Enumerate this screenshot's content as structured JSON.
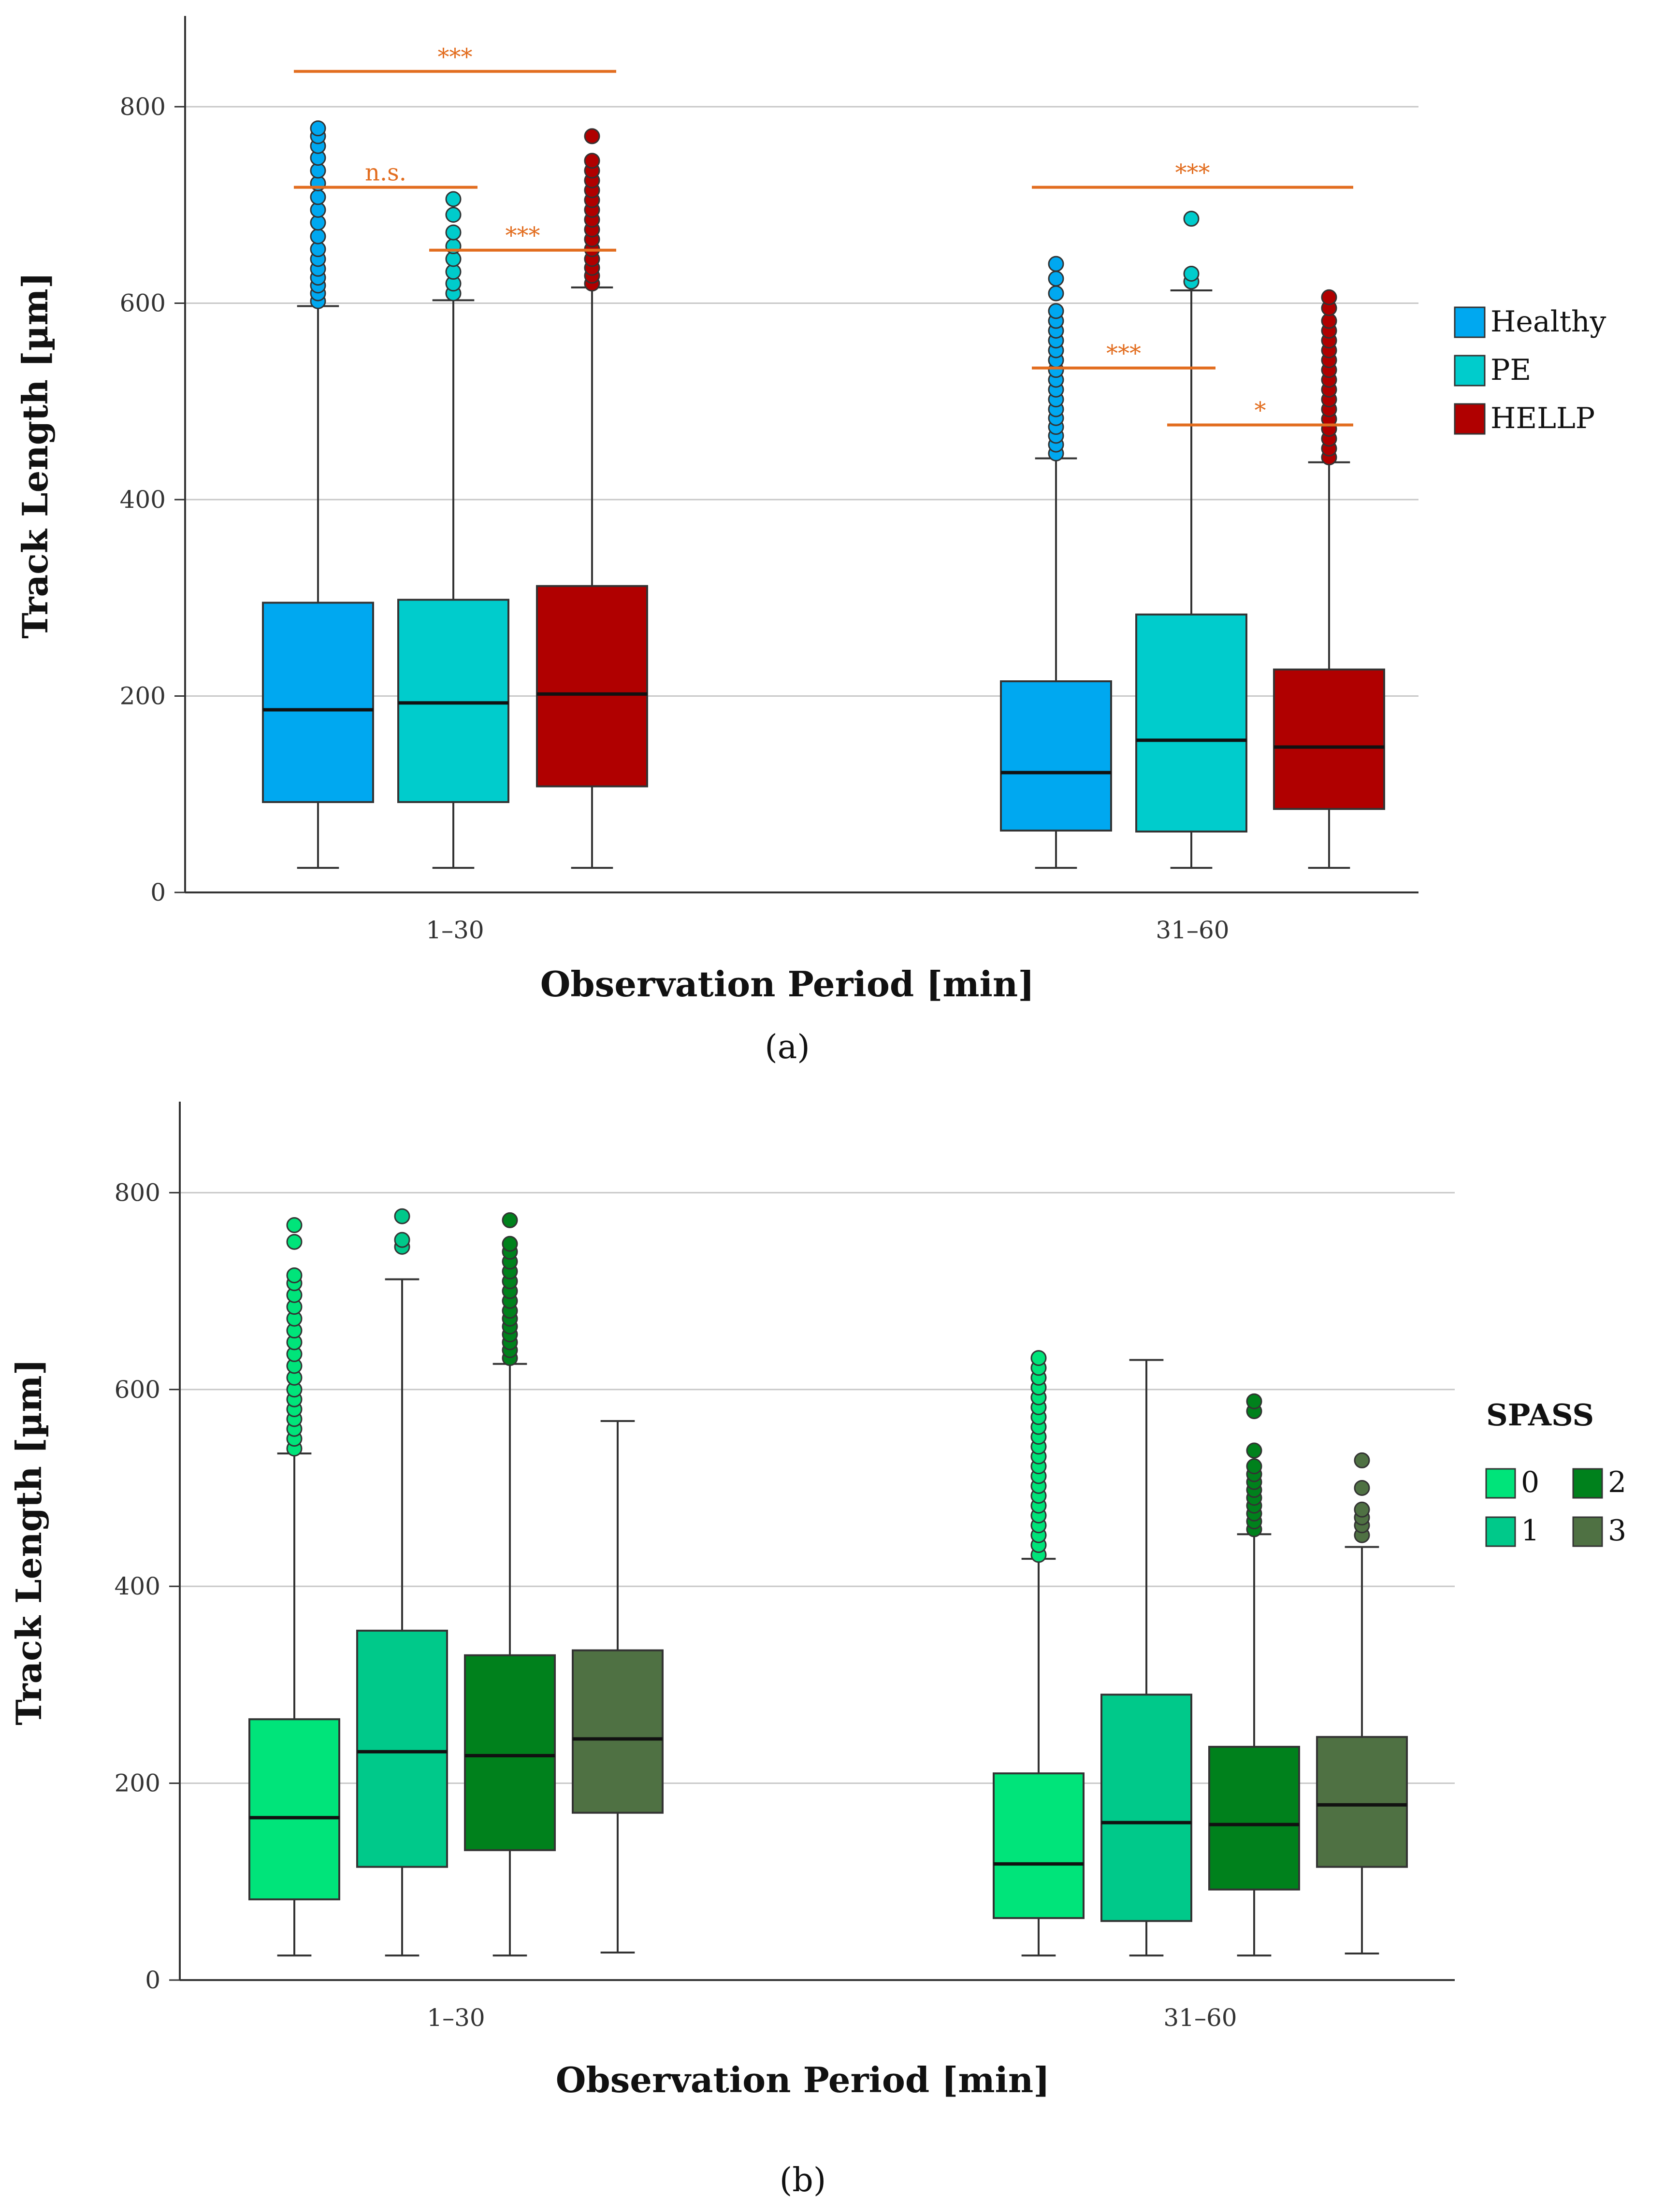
{
  "figure": {
    "panel_a_label": "(a)",
    "panel_b_label": "(b)"
  },
  "chart_data": [
    {
      "type": "boxplot",
      "panel": "a",
      "title": "",
      "xlabel": "Observation Period [min]",
      "ylabel": "Track Length [µm]",
      "ylim": [
        0,
        890
      ],
      "yticks": [
        "0",
        "200",
        "400",
        "600",
        "800"
      ],
      "grid": true,
      "legend_position": "right",
      "legend_title": "",
      "categories": [
        "1–30",
        "31–60"
      ],
      "series": [
        {
          "name": "Healthy",
          "color": "#00a8f0",
          "boxes": [
            {
              "whisker_low": 25,
              "q1": 92,
              "median": 186,
              "q3": 295,
              "whisker_high": 597,
              "outliers": [
                602,
                610,
                618,
                626,
                635,
                645,
                655,
                668,
                682,
                695,
                708,
                722,
                735,
                748,
                760,
                770,
                778
              ]
            },
            {
              "whisker_low": 25,
              "q1": 63,
              "median": 122,
              "q3": 215,
              "whisker_high": 442,
              "outliers": [
                447,
                456,
                465,
                474,
                483,
                492,
                502,
                512,
                522,
                532,
                542,
                552,
                562,
                572,
                582,
                592,
                610,
                625,
                640
              ]
            }
          ]
        },
        {
          "name": "PE",
          "color": "#00cccc",
          "boxes": [
            {
              "whisker_low": 25,
              "q1": 92,
              "median": 193,
              "q3": 298,
              "whisker_high": 603,
              "outliers": [
                610,
                620,
                632,
                645,
                658,
                672,
                690,
                706
              ]
            },
            {
              "whisker_low": 25,
              "q1": 62,
              "median": 155,
              "q3": 283,
              "whisker_high": 613,
              "outliers": [
                622,
                630,
                686
              ]
            }
          ]
        },
        {
          "name": "HELLP",
          "color": "#b00000",
          "boxes": [
            {
              "whisker_low": 25,
              "q1": 108,
              "median": 202,
              "q3": 312,
              "whisker_high": 616,
              "outliers": [
                620,
                628,
                636,
                645,
                655,
                665,
                675,
                685,
                695,
                705,
                715,
                725,
                735,
                745,
                770
              ]
            },
            {
              "whisker_low": 25,
              "q1": 85,
              "median": 148,
              "q3": 227,
              "whisker_high": 438,
              "outliers": [
                443,
                452,
                462,
                472,
                482,
                492,
                502,
                512,
                522,
                532,
                542,
                552,
                562,
                572,
                582,
                595,
                606
              ]
            }
          ]
        }
      ],
      "annotations": [
        {
          "text": "***",
          "category": 0,
          "from": "Healthy",
          "to": "HELLP",
          "y": 836
        },
        {
          "text": "n.s.",
          "category": 0,
          "from": "Healthy",
          "to": "PE",
          "y": 718
        },
        {
          "text": "***",
          "category": 0,
          "from": "PE",
          "to": "HELLP",
          "y": 654
        },
        {
          "text": "***",
          "category": 1,
          "from": "Healthy",
          "to": "HELLP",
          "y": 718
        },
        {
          "text": "***",
          "category": 1,
          "from": "Healthy",
          "to": "PE",
          "y": 534
        },
        {
          "text": "*",
          "category": 1,
          "from": "PE",
          "to": "HELLP",
          "y": 476
        }
      ]
    },
    {
      "type": "boxplot",
      "panel": "b",
      "title": "",
      "xlabel": "Observation Period [min]",
      "ylabel": "Track Length [µm]",
      "ylim": [
        0,
        890
      ],
      "yticks": [
        "0",
        "200",
        "400",
        "600",
        "800"
      ],
      "grid": true,
      "legend_position": "right",
      "legend_title": "SPASS",
      "categories": [
        "1–30",
        "31–60"
      ],
      "series": [
        {
          "name": "0",
          "color": "#00e47a",
          "boxes": [
            {
              "whisker_low": 25,
              "q1": 82,
              "median": 165,
              "q3": 265,
              "whisker_high": 535,
              "outliers": [
                540,
                550,
                560,
                570,
                580,
                590,
                600,
                612,
                624,
                636,
                648,
                660,
                672,
                684,
                696,
                708,
                716,
                750,
                767
              ]
            },
            {
              "whisker_low": 25,
              "q1": 63,
              "median": 118,
              "q3": 210,
              "whisker_high": 428,
              "outliers": [
                432,
                442,
                452,
                462,
                472,
                482,
                492,
                502,
                512,
                522,
                532,
                542,
                552,
                562,
                572,
                582,
                592,
                602,
                612,
                622,
                632
              ]
            }
          ]
        },
        {
          "name": "1",
          "color": "#00c98a",
          "boxes": [
            {
              "whisker_low": 25,
              "q1": 115,
              "median": 232,
              "q3": 355,
              "whisker_high": 712,
              "outliers": [
                745,
                752,
                776
              ]
            },
            {
              "whisker_low": 25,
              "q1": 60,
              "median": 160,
              "q3": 290,
              "whisker_high": 630,
              "outliers": []
            }
          ]
        },
        {
          "name": "2",
          "color": "#00811c",
          "boxes": [
            {
              "whisker_low": 25,
              "q1": 132,
              "median": 228,
              "q3": 330,
              "whisker_high": 626,
              "outliers": [
                632,
                640,
                648,
                656,
                664,
                672,
                680,
                690,
                700,
                710,
                720,
                730,
                740,
                748,
                772
              ]
            },
            {
              "whisker_low": 25,
              "q1": 92,
              "median": 158,
              "q3": 237,
              "whisker_high": 453,
              "outliers": [
                458,
                466,
                474,
                482,
                490,
                498,
                506,
                514,
                522,
                538,
                578,
                588
              ]
            }
          ]
        },
        {
          "name": "3",
          "color": "#4f7143",
          "boxes": [
            {
              "whisker_low": 28,
              "q1": 170,
              "median": 245,
              "q3": 335,
              "whisker_high": 568,
              "outliers": []
            },
            {
              "whisker_low": 27,
              "q1": 115,
              "median": 178,
              "q3": 247,
              "whisker_high": 440,
              "outliers": [
                452,
                462,
                470,
                478,
                500,
                528
              ]
            }
          ]
        }
      ],
      "annotations": []
    }
  ]
}
